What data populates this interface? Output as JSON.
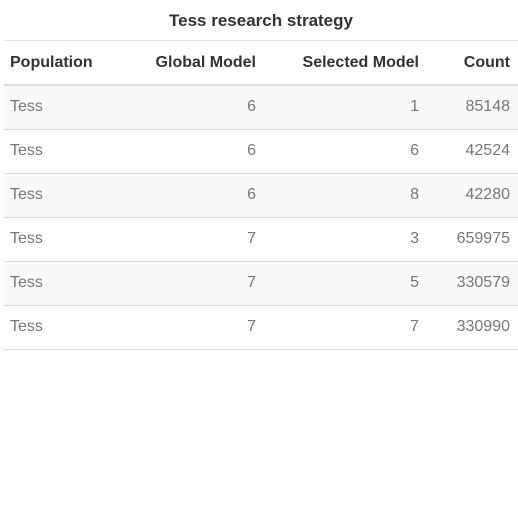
{
  "table": {
    "title": "Tess research strategy",
    "columns": [
      "Population",
      "Global Model",
      "Selected Model",
      "Count"
    ],
    "rows": [
      [
        "Tess",
        "6",
        "1",
        "85148"
      ],
      [
        "Tess",
        "6",
        "6",
        "42524"
      ],
      [
        "Tess",
        "6",
        "8",
        "42280"
      ],
      [
        "Tess",
        "7",
        "3",
        "659975"
      ],
      [
        "Tess",
        "7",
        "5",
        "330579"
      ],
      [
        "Tess",
        "7",
        "7",
        "330990"
      ]
    ]
  }
}
